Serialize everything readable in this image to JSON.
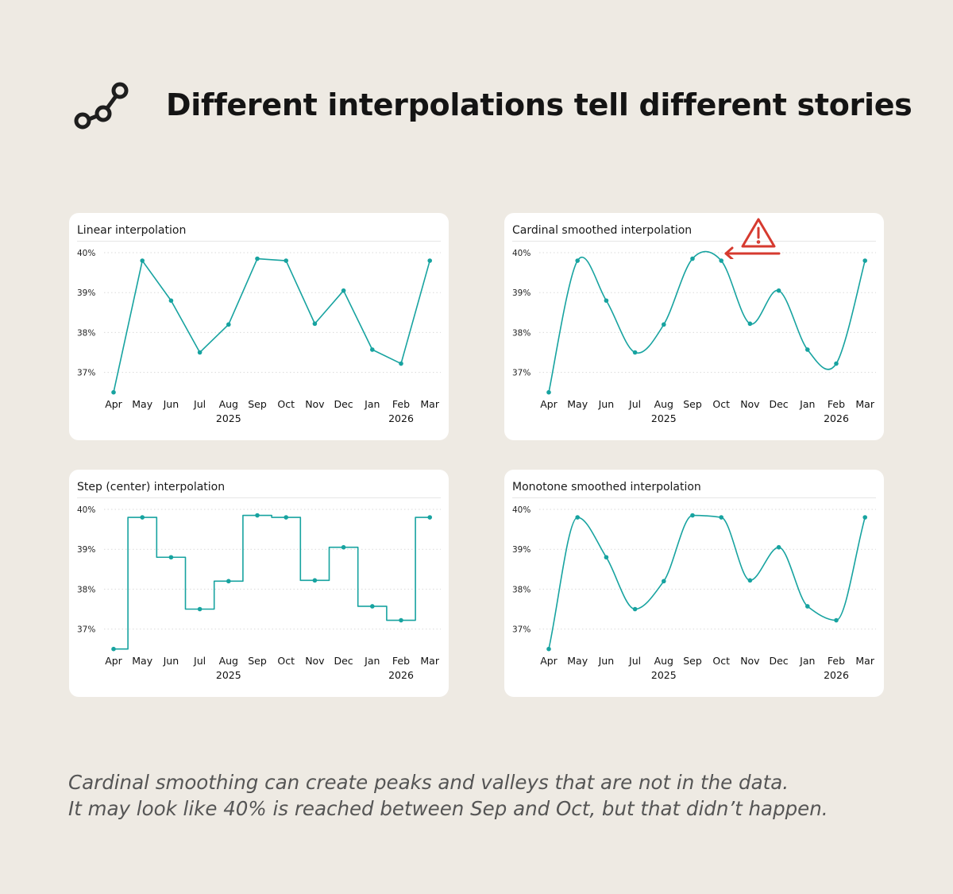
{
  "title": "Different interpolations tell different stories",
  "icon": "line-chart-nodes-icon",
  "colors": {
    "line": "#17a3a0",
    "warning": "#d63a2f",
    "background": "#eeeae3"
  },
  "caption": {
    "line1": "Cardinal smoothing can create peaks and valleys that are not in the data.",
    "line2": "It may look like 40% is reached between Sep and Oct, but that didn’t happen."
  },
  "chart_data": [
    {
      "type": "line",
      "interpolation": "linear",
      "title": "Linear interpolation",
      "x": [
        "Apr",
        "May",
        "Jun",
        "Jul",
        "Aug",
        "Sep",
        "Oct",
        "Nov",
        "Dec",
        "Jan",
        "Feb",
        "Mar"
      ],
      "year_labels": [
        {
          "under": "Aug",
          "text": "2025"
        },
        {
          "under": "Feb",
          "text": "2026"
        }
      ],
      "values": [
        36.5,
        39.8,
        38.8,
        37.5,
        38.2,
        39.85,
        39.8,
        38.22,
        39.05,
        37.57,
        37.22,
        39.8
      ],
      "yticks": [
        "37%",
        "38%",
        "39%",
        "40%"
      ],
      "ylim": [
        36.3,
        40.1
      ],
      "grid": "horizontal dotted"
    },
    {
      "type": "line",
      "interpolation": "cardinal",
      "title": "Cardinal smoothed interpolation",
      "x": [
        "Apr",
        "May",
        "Jun",
        "Jul",
        "Aug",
        "Sep",
        "Oct",
        "Nov",
        "Dec",
        "Jan",
        "Feb",
        "Mar"
      ],
      "year_labels": [
        {
          "under": "Aug",
          "text": "2025"
        },
        {
          "under": "Feb",
          "text": "2026"
        }
      ],
      "values": [
        36.5,
        39.8,
        38.8,
        37.5,
        38.2,
        39.85,
        39.8,
        38.22,
        39.05,
        37.57,
        37.22,
        39.8
      ],
      "yticks": [
        "37%",
        "38%",
        "39%",
        "40%"
      ],
      "ylim": [
        36.3,
        40.1
      ],
      "grid": "horizontal dotted",
      "annotation": {
        "icon": "warning-triangle-icon",
        "arrow_to": "peak between Sep and Oct"
      }
    },
    {
      "type": "line",
      "interpolation": "step-center",
      "title": "Step (center) interpolation",
      "x": [
        "Apr",
        "May",
        "Jun",
        "Jul",
        "Aug",
        "Sep",
        "Oct",
        "Nov",
        "Dec",
        "Jan",
        "Feb",
        "Mar"
      ],
      "year_labels": [
        {
          "under": "Aug",
          "text": "2025"
        },
        {
          "under": "Feb",
          "text": "2026"
        }
      ],
      "values": [
        36.5,
        39.8,
        38.8,
        37.5,
        38.2,
        39.85,
        39.8,
        38.22,
        39.05,
        37.57,
        37.22,
        39.8
      ],
      "yticks": [
        "37%",
        "38%",
        "39%",
        "40%"
      ],
      "ylim": [
        36.3,
        40.1
      ],
      "grid": "horizontal dotted"
    },
    {
      "type": "line",
      "interpolation": "monotone",
      "title": "Monotone smoothed interpolation",
      "x": [
        "Apr",
        "May",
        "Jun",
        "Jul",
        "Aug",
        "Sep",
        "Oct",
        "Nov",
        "Dec",
        "Jan",
        "Feb",
        "Mar"
      ],
      "year_labels": [
        {
          "under": "Aug",
          "text": "2025"
        },
        {
          "under": "Feb",
          "text": "2026"
        }
      ],
      "values": [
        36.5,
        39.8,
        38.8,
        37.5,
        38.2,
        39.85,
        39.8,
        38.22,
        39.05,
        37.57,
        37.22,
        39.8
      ],
      "yticks": [
        "37%",
        "38%",
        "39%",
        "40%"
      ],
      "ylim": [
        36.3,
        40.1
      ],
      "grid": "horizontal dotted"
    }
  ]
}
